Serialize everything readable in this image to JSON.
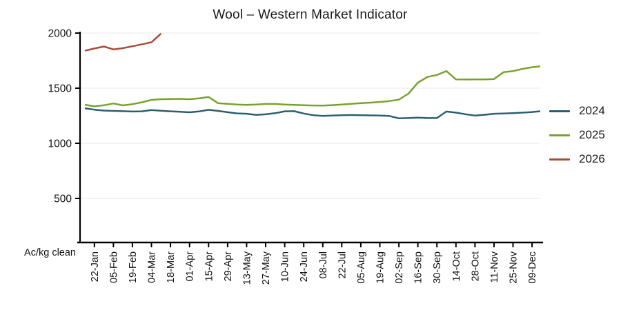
{
  "title": "Wool – Western Market Indicator",
  "y_axis": {
    "unit_label": "Ac/kg clean",
    "tick_values": [
      500,
      1000,
      1500,
      2000
    ],
    "tick_labels": [
      "500",
      "1000",
      "1500",
      "2000"
    ]
  },
  "x_axis": {
    "tick_labels": [
      "22-Jan",
      "05-Feb",
      "19-Feb",
      "04-Mar",
      "18-Mar",
      "01-Apr",
      "15-Apr",
      "29-Apr",
      "13-May",
      "27-May",
      "10-Jun",
      "24-Jun",
      "08-Jul",
      "22-Jul",
      "05-Aug",
      "19-Aug",
      "02-Sep",
      "16-Sep",
      "30-Sep",
      "14-Oct",
      "28-Oct",
      "11-Nov",
      "25-Nov",
      "09-Dec"
    ]
  },
  "legend": {
    "items": [
      {
        "label": "2024"
      },
      {
        "label": "2025"
      },
      {
        "label": "2026"
      }
    ]
  },
  "colors": {
    "series_2024": "#2a5f6e",
    "series_2025": "#78a22e",
    "series_2026": "#a84c38",
    "gridline": "#ececec",
    "axis": "#000000",
    "text": "#111111"
  },
  "chart_data": {
    "type": "line",
    "title": "Wool – Western Market Indicator",
    "ylabel": "Ac/kg clean",
    "ylim": [
      100,
      2000
    ],
    "y_ticks": [
      500,
      1000,
      1500,
      2000
    ],
    "grid": "horizontal",
    "legend_position": "right",
    "x_tick_labels": [
      "22-Jan",
      "05-Feb",
      "19-Feb",
      "04-Mar",
      "18-Mar",
      "01-Apr",
      "15-Apr",
      "29-Apr",
      "13-May",
      "27-May",
      "10-Jun",
      "24-Jun",
      "08-Jul",
      "22-Jul",
      "05-Aug",
      "19-Aug",
      "02-Sep",
      "16-Sep",
      "30-Sep",
      "14-Oct",
      "28-Oct",
      "11-Nov",
      "25-Nov",
      "09-Dec"
    ],
    "points_per_tick_interval": 2,
    "series": [
      {
        "name": "2024",
        "color": "#2a5f6e",
        "start_index": 0,
        "values": [
          1318,
          1305,
          1297,
          1294,
          1291,
          1288,
          1290,
          1301,
          1295,
          1290,
          1286,
          1281,
          1289,
          1304,
          1294,
          1282,
          1271,
          1268,
          1258,
          1263,
          1273,
          1290,
          1291,
          1270,
          1255,
          1249,
          1252,
          1255,
          1256,
          1255,
          1253,
          1251,
          1248,
          1226,
          1229,
          1233,
          1229,
          1229,
          1288,
          1278,
          1264,
          1251,
          1259,
          1268,
          1270,
          1274,
          1278,
          1284,
          1292
        ]
      },
      {
        "name": "2025",
        "color": "#78a22e",
        "start_index": 0,
        "values": [
          1350,
          1335,
          1345,
          1361,
          1344,
          1355,
          1372,
          1394,
          1400,
          1401,
          1403,
          1400,
          1408,
          1420,
          1364,
          1358,
          1352,
          1348,
          1352,
          1357,
          1357,
          1352,
          1349,
          1345,
          1343,
          1342,
          1346,
          1352,
          1358,
          1364,
          1369,
          1375,
          1383,
          1396,
          1450,
          1550,
          1602,
          1620,
          1655,
          1580,
          1579,
          1580,
          1580,
          1583,
          1645,
          1655,
          1675,
          1690,
          1700
        ]
      },
      {
        "name": "2026",
        "color": "#a84c38",
        "start_index": 0,
        "values": [
          1840,
          1860,
          1878,
          1852,
          1863,
          1880,
          1898,
          1916,
          1995
        ]
      }
    ]
  }
}
